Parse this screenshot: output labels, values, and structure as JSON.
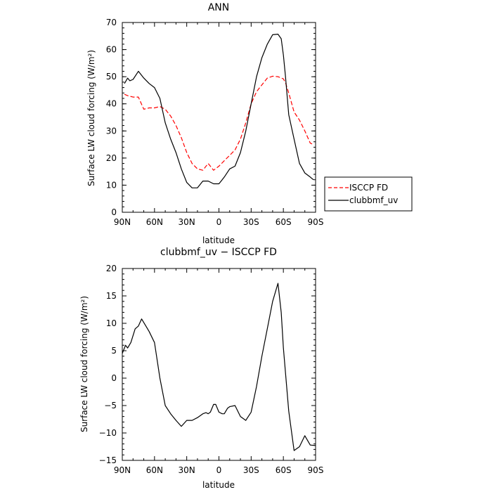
{
  "chart_data": [
    {
      "type": "line",
      "title": "ANN",
      "xlabel": "latitude",
      "ylabel": "Surface LW cloud forcing (W/m²)",
      "xlim": [
        90,
        -90
      ],
      "ylim": [
        0,
        70
      ],
      "x_ticks": [
        90,
        60,
        30,
        0,
        -30,
        -60,
        -90
      ],
      "x_tick_labels": [
        "90N",
        "60N",
        "30N",
        "0",
        "30S",
        "60S",
        "90S"
      ],
      "y_ticks": [
        0,
        10,
        20,
        30,
        40,
        50,
        60,
        70
      ],
      "y_tick_labels": [
        "0",
        "10",
        "20",
        "30",
        "40",
        "50",
        "60",
        "70"
      ],
      "legend": "right",
      "series": [
        {
          "name": "ISCCP FD",
          "color": "#ff0000",
          "dash": "dashed",
          "x": [
            88,
            85,
            80,
            75,
            70,
            65,
            60,
            55,
            50,
            45,
            40,
            35,
            30,
            25,
            20,
            15,
            10,
            5,
            0,
            -5,
            -10,
            -15,
            -20,
            -25,
            -30,
            -35,
            -40,
            -45,
            -50,
            -55,
            -60,
            -62,
            -65,
            -70,
            -75,
            -80,
            -85,
            -88
          ],
          "values": [
            43.5,
            43,
            42.5,
            42.5,
            38,
            38.5,
            38.5,
            39,
            38,
            35.5,
            32,
            27.5,
            22,
            18,
            16,
            15.5,
            18,
            15.5,
            17,
            19,
            21,
            23,
            27,
            33,
            40,
            44.5,
            47,
            49.5,
            50.2,
            50,
            49.2,
            47.8,
            44,
            37,
            34,
            30,
            25.5,
            25
          ],
          "x_note": "latitude in degrees; positive = N, negative = S"
        },
        {
          "name": "clubbmf_uv",
          "color": "#000000",
          "dash": "solid",
          "x": [
            88,
            85,
            83,
            80,
            75,
            70,
            65,
            60,
            55,
            50,
            45,
            40,
            35,
            30,
            25,
            20,
            15,
            10,
            5,
            0,
            -3,
            -5,
            -10,
            -15,
            -20,
            -25,
            -30,
            -35,
            -40,
            -45,
            -50,
            -55,
            -58,
            -60,
            -62,
            -65,
            -70,
            -75,
            -80,
            -85,
            -88
          ],
          "values": [
            47.5,
            49.5,
            48.5,
            49,
            52,
            49.5,
            47.5,
            46,
            42,
            33,
            27,
            22,
            16,
            11,
            9,
            9,
            11.5,
            11.5,
            10.5,
            10.5,
            12,
            13,
            16,
            17,
            22,
            30,
            40,
            50,
            57,
            62,
            65.5,
            65.7,
            64,
            58,
            50,
            36,
            27,
            18,
            14.5,
            13,
            12
          ]
        }
      ]
    },
    {
      "type": "line",
      "title": "clubbmf_uv − ISCCP FD",
      "xlabel": "latitude",
      "ylabel": "Surface LW cloud forcing (W/m²)",
      "xlim": [
        90,
        -90
      ],
      "ylim": [
        -15,
        20
      ],
      "x_ticks": [
        90,
        60,
        30,
        0,
        -30,
        -60,
        -90
      ],
      "x_tick_labels": [
        "90N",
        "60N",
        "30N",
        "0",
        "30S",
        "60S",
        "90S"
      ],
      "y_ticks": [
        -15,
        -10,
        -5,
        0,
        5,
        10,
        15,
        20
      ],
      "y_tick_labels": [
        "−15",
        "−10",
        "−5",
        "0",
        "5",
        "10",
        "15",
        "20"
      ],
      "series": [
        {
          "name": "",
          "color": "#000000",
          "dash": "solid",
          "x": [
            90,
            87,
            85,
            82,
            78,
            75,
            72,
            68,
            65,
            60,
            55,
            50,
            45,
            40,
            35,
            30,
            25,
            20,
            15,
            12,
            10,
            8,
            5,
            3,
            0,
            -3,
            -5,
            -8,
            -10,
            -15,
            -18,
            -20,
            -25,
            -30,
            -35,
            -40,
            -45,
            -50,
            -55,
            -58,
            -60,
            -65,
            -70,
            -75,
            -80,
            -85,
            -90
          ],
          "values": [
            4.5,
            6,
            5.5,
            6.5,
            9,
            9.5,
            10.8,
            9.5,
            8.5,
            6.5,
            0,
            -5,
            -6.5,
            -7.7,
            -8.8,
            -7.7,
            -7.7,
            -7.2,
            -6.5,
            -6.3,
            -6.5,
            -6.2,
            -4.8,
            -4.8,
            -6.2,
            -6.5,
            -6.5,
            -5.5,
            -5.2,
            -5,
            -6.2,
            -7,
            -7.7,
            -6.2,
            -1.5,
            4,
            9,
            14,
            17.3,
            12,
            5.5,
            -6,
            -13.2,
            -12.5,
            -10.5,
            -12.2,
            -12.3
          ]
        }
      ]
    }
  ]
}
